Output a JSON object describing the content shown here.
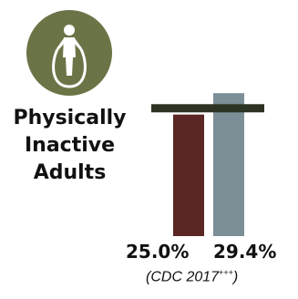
{
  "title": [
    "Physically",
    "Inactive",
    "Adults"
  ],
  "icon": "jump-rope-person-icon",
  "colors": {
    "badge": "#6b7446",
    "bar_1": "#5a2724",
    "bar_2": "#7d8f96",
    "benchmark": "#2c3322"
  },
  "chart_data": {
    "type": "bar",
    "categories": [
      "",
      ""
    ],
    "values": [
      25.0,
      29.4
    ],
    "data_labels": [
      "25.0%",
      "29.4%"
    ],
    "ylim": [
      0,
      30
    ],
    "benchmark_line": 26.2
  },
  "source": {
    "text": "(CDC 2017",
    "superscript": "+++",
    "close": ")"
  }
}
